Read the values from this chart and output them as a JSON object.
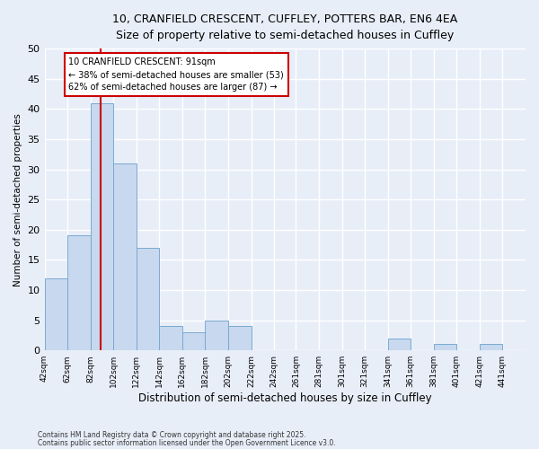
{
  "title_line1": "10, CRANFIELD CRESCENT, CUFFLEY, POTTERS BAR, EN6 4EA",
  "title_line2": "Size of property relative to semi-detached houses in Cuffley",
  "xlabel": "Distribution of semi-detached houses by size in Cuffley",
  "ylabel": "Number of semi-detached properties",
  "bin_labels": [
    "42sqm",
    "62sqm",
    "82sqm",
    "102sqm",
    "122sqm",
    "142sqm",
    "162sqm",
    "182sqm",
    "202sqm",
    "222sqm",
    "242sqm",
    "261sqm",
    "281sqm",
    "301sqm",
    "321sqm",
    "341sqm",
    "361sqm",
    "381sqm",
    "401sqm",
    "421sqm",
    "441sqm"
  ],
  "bin_edges": [
    42,
    62,
    82,
    102,
    122,
    142,
    162,
    182,
    202,
    222,
    242,
    261,
    281,
    301,
    321,
    341,
    361,
    381,
    401,
    421,
    441
  ],
  "counts": [
    12,
    19,
    41,
    31,
    17,
    4,
    3,
    5,
    4,
    0,
    0,
    0,
    0,
    0,
    0,
    2,
    0,
    1,
    0,
    1
  ],
  "bar_color": "#c8d8ee",
  "bar_edge_color": "#7aaad0",
  "property_size": 91,
  "red_line_color": "#cc0000",
  "annotation_text": "10 CRANFIELD CRESCENT: 91sqm\n← 38% of semi-detached houses are smaller (53)\n62% of semi-detached houses are larger (87) →",
  "annotation_box_color": "#ffffff",
  "annotation_box_edge_color": "#cc0000",
  "ylim": [
    0,
    50
  ],
  "yticks": [
    0,
    5,
    10,
    15,
    20,
    25,
    30,
    35,
    40,
    45,
    50
  ],
  "footer_line1": "Contains HM Land Registry data © Crown copyright and database right 2025.",
  "footer_line2": "Contains public sector information licensed under the Open Government Licence v3.0.",
  "bg_color": "#e8eef8",
  "plot_bg_color": "#e8eef8",
  "grid_color": "#ffffff"
}
